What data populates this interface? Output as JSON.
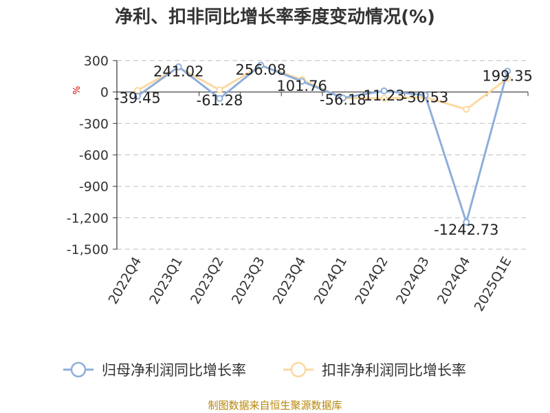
{
  "page": {
    "source": "制图数据来自恒生聚源数据库"
  },
  "chart_data": {
    "type": "line",
    "title": "净利、扣非同比增长率季度变动情况(%)",
    "unit_label": "%",
    "categories": [
      "2022Q4",
      "2023Q1",
      "2023Q2",
      "2023Q3",
      "2023Q4",
      "2024Q1",
      "2024Q2",
      "2024Q3",
      "2024Q4",
      "2025Q1E"
    ],
    "ylim": [
      -1500,
      300
    ],
    "yticks": [
      300,
      0,
      -300,
      -600,
      -900,
      -1200,
      -1500
    ],
    "ytick_labels": [
      "300",
      "0",
      "-300",
      "-600",
      "-900",
      "-1,200",
      "-1,500"
    ],
    "grid": "horizontal-dashed",
    "legend_position": "bottom",
    "series": [
      {
        "name": "归母净利润同比增长率",
        "color": "#8eaedb",
        "values": [
          -39.45,
          241.02,
          -61.28,
          256.08,
          101.76,
          -56.18,
          11.23,
          -30.53,
          -1242.73,
          199.35
        ],
        "labels": [
          "-39.45",
          "241.02",
          "-61.28",
          "256.08",
          "101.76",
          "-56.18",
          "11.23",
          "-30.53",
          "-1242.73",
          "199.35"
        ]
      },
      {
        "name": "扣非净利润同比增长率",
        "color": "#fdd8a0",
        "values": [
          15,
          235,
          20,
          250,
          120,
          -60,
          -60,
          -50,
          -165,
          130
        ]
      }
    ]
  }
}
